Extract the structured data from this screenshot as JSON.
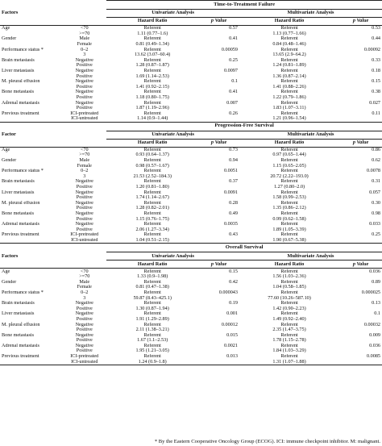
{
  "sections": [
    {
      "title": "Time-to-Treatment Failure",
      "factor_header": "Factors",
      "uni_header": "Univariate Analysis",
      "multi_header": "Multivariate Analysis",
      "hr_label": "Hazard Ratio",
      "p_label": "p Value",
      "rows": [
        {
          "factor": "Age",
          "sub": "<70",
          "uhr": "Referent",
          "up": "0.57",
          "mhr": "Referent",
          "mp": "0.53"
        },
        {
          "factor": "",
          "sub": ">=70",
          "uhr": "1.11 (0.77–1.6)",
          "up": "",
          "mhr": "1.13 (0.77–1.66)",
          "mp": ""
        },
        {
          "factor": "Gender",
          "sub": "Male",
          "uhr": "Referent",
          "up": "0.41",
          "mhr": "Referent",
          "mp": "0.44"
        },
        {
          "factor": "",
          "sub": "Female",
          "uhr": "0.81 (0.49–1.34)",
          "up": "",
          "mhr": "0.84 (0.48–1.46)",
          "mp": ""
        },
        {
          "factor": "Performance status *",
          "sub": "0–2",
          "uhr": "Referent",
          "up": "0.00059",
          "mhr": "Referent",
          "mp": "0.00092"
        },
        {
          "factor": "",
          "sub": "3",
          "uhr": "13.62 (3.07–60.4)",
          "up": "",
          "mhr": "13.65 (2.9–64.2)",
          "mp": ""
        },
        {
          "factor": "Brain metastasis",
          "sub": "Negative",
          "uhr": "Referent",
          "up": "0.25",
          "mhr": "Referent",
          "mp": "0.33"
        },
        {
          "factor": "",
          "sub": "Positive",
          "uhr": "1.28 (0.87–1.87)",
          "up": "",
          "mhr": "1.24 (0.81–1.89)",
          "mp": ""
        },
        {
          "factor": "Liver metastasis",
          "sub": "Negative",
          "uhr": "Referent",
          "up": "0.0097",
          "mhr": "Referent",
          "mp": "0.18"
        },
        {
          "factor": "",
          "sub": "Positive",
          "uhr": "1.69 (1.14–2.53)",
          "up": "",
          "mhr": "1.36 (0.87–2.14)",
          "mp": ""
        },
        {
          "factor": "M. pleural effusion",
          "sub": "Negative",
          "uhr": "Referent",
          "up": "0.1",
          "mhr": "Referent",
          "mp": "0.15"
        },
        {
          "factor": "",
          "sub": "Positive",
          "uhr": "1.41 (0.92–2.15)",
          "up": "",
          "mhr": "1.41 (0.88–2.26)",
          "mp": ""
        },
        {
          "factor": "Bone metastasis",
          "sub": "Negative",
          "uhr": "Referent",
          "up": "0.41",
          "mhr": "Referent",
          "mp": "0.38"
        },
        {
          "factor": "",
          "sub": "Positive",
          "uhr": "1.18 (0.80–1.75)",
          "up": "",
          "mhr": "1.22 (0.79–1.86)",
          "mp": ""
        },
        {
          "factor": "Adrenal metastasis",
          "sub": "Negative",
          "uhr": "Referent",
          "up": "0.007",
          "mhr": "Referent",
          "mp": "0.027"
        },
        {
          "factor": "",
          "sub": "Positive",
          "uhr": "1.87 (1.19–2.96)",
          "up": "",
          "mhr": "1.83 (1.07–3.11)",
          "mp": ""
        },
        {
          "factor": "Previous treatment",
          "sub": "ICI-pretreated",
          "uhr": "Referent",
          "up": "0.26",
          "mhr": "Referent",
          "mp": "0.11"
        },
        {
          "factor": "",
          "sub": "ICI-untreated",
          "uhr": "1.14 (0.9–1.44)",
          "up": "",
          "mhr": "1.21 (0.96–1.54)",
          "mp": ""
        }
      ]
    },
    {
      "title": "Progression-Free Survival",
      "factor_header": "Factor",
      "uni_header": "Univariate Analysis",
      "multi_header": "Multivariate Analysis",
      "hr_label": "Hazard Ratio",
      "p_label": "p Value",
      "rows": [
        {
          "factor": "Age",
          "sub": "<70",
          "uhr": "Referent",
          "up": "0.73",
          "mhr": "Referent",
          "mp": "0.86"
        },
        {
          "factor": "",
          "sub": ">=70",
          "uhr": "0.93 (0.64–1.37)",
          "up": "",
          "mhr": "0.97 (0.65–1.44)",
          "mp": ""
        },
        {
          "factor": "Gender",
          "sub": "Male",
          "uhr": "Referent",
          "up": "0.94",
          "mhr": "Referent",
          "mp": "0.62"
        },
        {
          "factor": "",
          "sub": "Female",
          "uhr": "0.98 (0.57–1.67)",
          "up": "",
          "mhr": "1.15 (0.65–2.05)",
          "mp": ""
        },
        {
          "factor": "Performance status *",
          "sub": "0–2",
          "uhr": "Referent",
          "up": "0.0051",
          "mhr": "Referent",
          "mp": "0.0078"
        },
        {
          "factor": "",
          "sub": "3",
          "uhr": "21.53 (2.52–184.3)",
          "up": "",
          "mhr": "20.72 (2.22–193.0)",
          "mp": ""
        },
        {
          "factor": "Brain metastasis",
          "sub": "Negative",
          "uhr": "Referent",
          "up": "0.37",
          "mhr": "Referent",
          "mp": "0.31"
        },
        {
          "factor": "",
          "sub": "Positive",
          "uhr": "1.20 (0.81–1.80)",
          "up": "",
          "mhr": "1.27 (0.80–2.0)",
          "mp": ""
        },
        {
          "factor": "Liver metastasis",
          "sub": "Negative",
          "uhr": "Referent",
          "up": "0.0091",
          "mhr": "Referent",
          "mp": "0.057"
        },
        {
          "factor": "",
          "sub": "Positive",
          "uhr": "1.74 (1.14–2.67)",
          "up": "",
          "mhr": "1.58 (0.99–2.53)",
          "mp": ""
        },
        {
          "factor": "M. pleural effusion",
          "sub": "Negative",
          "uhr": "Referent",
          "up": "0.28",
          "mhr": "Referent",
          "mp": "0.30"
        },
        {
          "factor": "",
          "sub": "Positive",
          "uhr": "1.28 (0.82–2.01)",
          "up": "",
          "mhr": "1.35 (0.86–2.12)",
          "mp": ""
        },
        {
          "factor": "Bone metastasis",
          "sub": "Negative",
          "uhr": "Referent",
          "up": "0.49",
          "mhr": "Referent",
          "mp": "0.98"
        },
        {
          "factor": "",
          "sub": "Positive",
          "uhr": "1.15 (0.76–1.75)",
          "up": "",
          "mhr": "0.99 (0.62–1.58)",
          "mp": ""
        },
        {
          "factor": "Adrenal metastasis",
          "sub": "Negative",
          "uhr": "Referent",
          "up": "0.0035",
          "mhr": "Referent",
          "mp": "0.033"
        },
        {
          "factor": "",
          "sub": "Positive",
          "uhr": "2.06 (1.27–3.34)",
          "up": "",
          "mhr": "1.89 (1.05–3.39)",
          "mp": ""
        },
        {
          "factor": "Previous treatment",
          "sub": "ICI-pretreated",
          "uhr": "Referent",
          "up": "0.43",
          "mhr": "Referent",
          "mp": "0.25"
        },
        {
          "factor": "",
          "sub": "ICI-untreated",
          "uhr": "1.04 (0.51–2.15)",
          "up": "",
          "mhr": "1.90 (0.67–5.38)",
          "mp": ""
        }
      ]
    },
    {
      "title": "Overall Survival",
      "factor_header": "Factors",
      "uni_header": "Univariate Analysis",
      "multi_header": "Multivariate Analysis",
      "hr_label": "Hazard Ratio",
      "p_label": "p Value",
      "rows": [
        {
          "factor": "Age",
          "sub": "<70",
          "uhr": "Referent",
          "up": "0.15",
          "mhr": "Referent",
          "mp": "0.036"
        },
        {
          "factor": "",
          "sub": ">=70",
          "uhr": "1.33 (0.9–1.98)",
          "up": "",
          "mhr": "1.56 (1.03–2.36)",
          "mp": ""
        },
        {
          "factor": "Gender",
          "sub": "Male",
          "uhr": "Referent",
          "up": "0.42",
          "mhr": "Referent",
          "mp": "0.89"
        },
        {
          "factor": "",
          "sub": "Female",
          "uhr": "0.81 (0.47–1.38)",
          "up": "",
          "mhr": "1.04 (0.58–1.85)",
          "mp": ""
        },
        {
          "factor": "Performance status *",
          "sub": "0–2",
          "uhr": "Referent",
          "up": "0.000043",
          "mhr": "Referent",
          "mp": "0.000025"
        },
        {
          "factor": "",
          "sub": "3",
          "uhr": "59.87 (8.43–425.1)",
          "up": "",
          "mhr": "77.60 (10.26–587.10)",
          "mp": ""
        },
        {
          "factor": "Brain metastasis",
          "sub": "Negative",
          "uhr": "Referent",
          "up": "0.19",
          "mhr": "Referent",
          "mp": "0.13"
        },
        {
          "factor": "",
          "sub": "Positive",
          "uhr": "1.30 (0.87–1.94)",
          "up": "",
          "mhr": "1.42 (0.90–2.23)",
          "mp": ""
        },
        {
          "factor": "Liver metastasis",
          "sub": "Negative",
          "uhr": "Referent",
          "up": "0.001",
          "mhr": "Referent",
          "mp": "0.1"
        },
        {
          "factor": "",
          "sub": "Positive",
          "uhr": "1.91 (1.29–2.89)",
          "up": "",
          "mhr": "1.49 (0.92–2.40)",
          "mp": ""
        },
        {
          "factor": "M. pleural effusion",
          "sub": "Negative",
          "uhr": "Referent",
          "up": "0.00012",
          "mhr": "Referent",
          "mp": "0.00032"
        },
        {
          "factor": "",
          "sub": "Positive",
          "uhr": "2.11 (1.38–3.21)",
          "up": "",
          "mhr": "2.35 (1.47–3.75)",
          "mp": ""
        },
        {
          "factor": "Bone metastasis",
          "sub": "Negative",
          "uhr": "Referent",
          "up": "0.015",
          "mhr": "Referent",
          "mp": "0.009"
        },
        {
          "factor": "",
          "sub": "Positive",
          "uhr": "1.67 (1.1–2.53)",
          "up": "",
          "mhr": "1.78 (1.15–2.78)",
          "mp": ""
        },
        {
          "factor": "Adrenal metastasis",
          "sub": "Negative",
          "uhr": "Referent",
          "up": "0.0021",
          "mhr": "Referent",
          "mp": "0.036"
        },
        {
          "factor": "",
          "sub": "Positive",
          "uhr": "1.95 (1.21–3.05)",
          "up": "",
          "mhr": "1.84 (1.03–3.29)",
          "mp": ""
        },
        {
          "factor": "Previous treatment",
          "sub": "ICI-pretreated",
          "uhr": "Referent",
          "up": "0.013",
          "mhr": "Referent",
          "mp": "0.0085"
        },
        {
          "factor": "",
          "sub": "ICI-untreated",
          "uhr": "1.24 (0.9–1.8)",
          "up": "",
          "mhr": "1.31 (1.07–1.88)",
          "mp": ""
        }
      ]
    }
  ],
  "footnote": "* By the Eastern Cooperative Oncology Group (ECOG). ICI: immune checkpoint inhibitor. M: malignant."
}
